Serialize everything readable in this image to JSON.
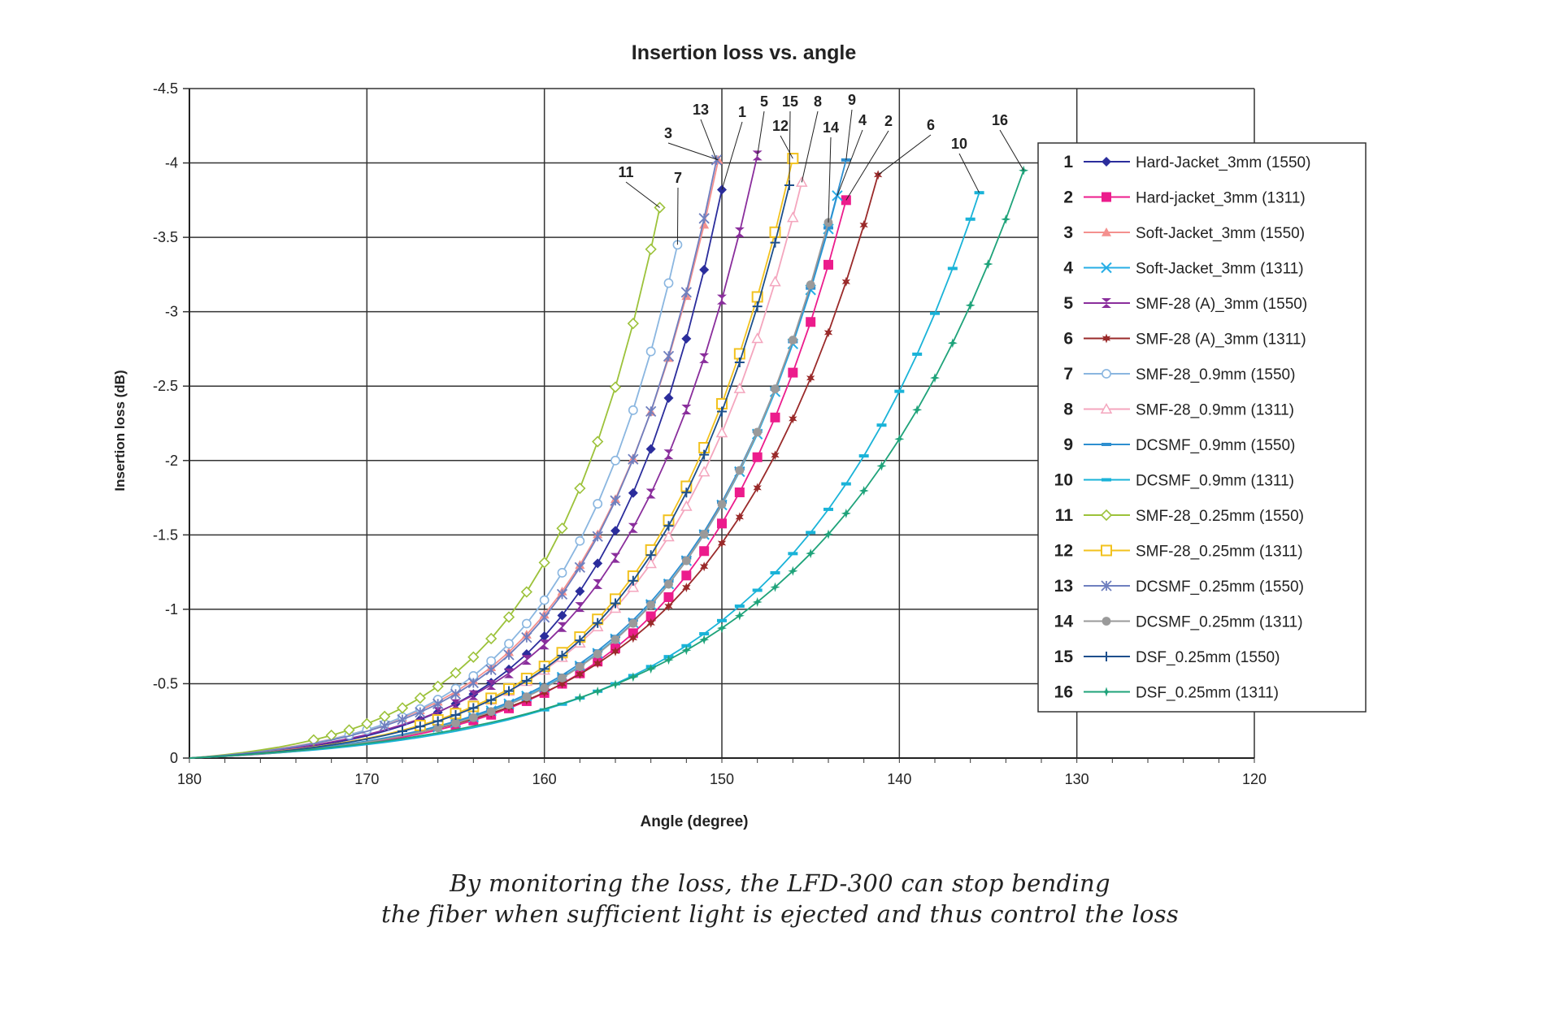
{
  "chart_data": {
    "type": "line",
    "title": "Insertion loss vs. angle",
    "xlabel": "Angle (degree)",
    "ylabel": "Insertion loss (dB)",
    "xlim": [
      180,
      120
    ],
    "ylim": [
      0,
      -4.5
    ],
    "x_reversed": true,
    "y_reversed": true,
    "x_ticks": [
      "180",
      "170",
      "160",
      "150",
      "140",
      "130",
      "120"
    ],
    "y_ticks": [
      "0",
      "-0.5",
      "-1",
      "-1.5",
      "-2",
      "-2.5",
      "-3",
      "-3.5",
      "-4",
      "-4.5"
    ],
    "grid": true,
    "legend_position": "right",
    "series": [
      {
        "id": "1",
        "name": "Hard-Jacket_3mm (1550)",
        "color": "#2b2d9c",
        "marker": "diamond",
        "end_x": 150,
        "end_y": -3.82,
        "start_x": 167,
        "knee": 4.5
      },
      {
        "id": "2",
        "name": "Hard-jacket_3mm (1311)",
        "color": "#ec1c8c",
        "marker": "square",
        "end_x": 143,
        "end_y": -3.75,
        "start_x": 165,
        "knee": 4.5
      },
      {
        "id": "3",
        "name": "Soft-Jacket_3mm (1550)",
        "color": "#f4908e",
        "marker": "triangle",
        "end_x": 150.2,
        "end_y": -4.02,
        "start_x": 171,
        "knee": 4.2
      },
      {
        "id": "4",
        "name": "Soft-Jacket_3mm (1311)",
        "color": "#27aee6",
        "marker": "x",
        "end_x": 143.5,
        "end_y": -3.78,
        "start_x": 166,
        "knee": 4.4
      },
      {
        "id": "5",
        "name": "SMF-28 (A)_3mm (1550)",
        "color": "#8a2e9c",
        "marker": "hourglass",
        "end_x": 148,
        "end_y": -4.05,
        "start_x": 166,
        "knee": 4.3
      },
      {
        "id": "6",
        "name": "SMF-28 (A)_3mm (1311)",
        "color": "#9a2a2a",
        "marker": "star",
        "end_x": 141.2,
        "end_y": -3.92,
        "start_x": 163,
        "knee": 4.3
      },
      {
        "id": "7",
        "name": "SMF-28_0.9mm (1550)",
        "color": "#8ab6e0",
        "marker": "circle-open",
        "end_x": 152.5,
        "end_y": -3.45,
        "start_x": 171,
        "knee": 4.2
      },
      {
        "id": "8",
        "name": "SMF-28_0.9mm (1311)",
        "color": "#f4a6be",
        "marker": "triangle-open",
        "end_x": 145.5,
        "end_y": -3.87,
        "start_x": 167,
        "knee": 4.3
      },
      {
        "id": "9",
        "name": "DCSMF_0.9mm (1550)",
        "color": "#2e8fd0",
        "marker": "dash",
        "end_x": 143,
        "end_y": -4.02,
        "start_x": 166,
        "knee": 4.4
      },
      {
        "id": "10",
        "name": "DCSMF_0.9mm (1311)",
        "color": "#1ab3d8",
        "marker": "dash",
        "end_x": 135.5,
        "end_y": -3.8,
        "start_x": 160,
        "knee": 4.2
      },
      {
        "id": "11",
        "name": "SMF-28_0.25mm (1550)",
        "color": "#9cc23a",
        "marker": "diamond-open",
        "end_x": 153.5,
        "end_y": -3.7,
        "start_x": 173,
        "knee": 4.1
      },
      {
        "id": "12",
        "name": "SMF-28_0.25mm (1311)",
        "color": "#f2c21e",
        "marker": "square-open",
        "end_x": 146,
        "end_y": -4.03,
        "start_x": 167,
        "knee": 4.4
      },
      {
        "id": "13",
        "name": "DCSMF_0.25mm (1550)",
        "color": "#6f7fbf",
        "marker": "asterisk",
        "end_x": 150.3,
        "end_y": -4.02,
        "start_x": 169,
        "knee": 4.3
      },
      {
        "id": "14",
        "name": "DCSMF_0.25mm (1311)",
        "color": "#9a9a9a",
        "marker": "circle",
        "end_x": 144,
        "end_y": -3.6,
        "start_x": 166,
        "knee": 4.4
      },
      {
        "id": "15",
        "name": "DSF_0.25mm (1550)",
        "color": "#1d4f8c",
        "marker": "plus",
        "end_x": 146.2,
        "end_y": -3.85,
        "start_x": 168,
        "knee": 4.4
      },
      {
        "id": "16",
        "name": "DSF_0.25mm (1311)",
        "color": "#1fa37a",
        "marker": "star4",
        "end_x": 133,
        "end_y": -3.95,
        "start_x": 158,
        "knee": 4.0
      }
    ],
    "annotations": [
      "13",
      "1",
      "5",
      "15",
      "8",
      "9",
      "3",
      "12",
      "14",
      "4",
      "2",
      "6",
      "11",
      "7",
      "10",
      "16"
    ]
  },
  "caption": {
    "line1": "By monitoring the loss, the LFD-300 can stop bending",
    "line2": "the fiber when sufficient light is ejected and thus control the loss"
  }
}
